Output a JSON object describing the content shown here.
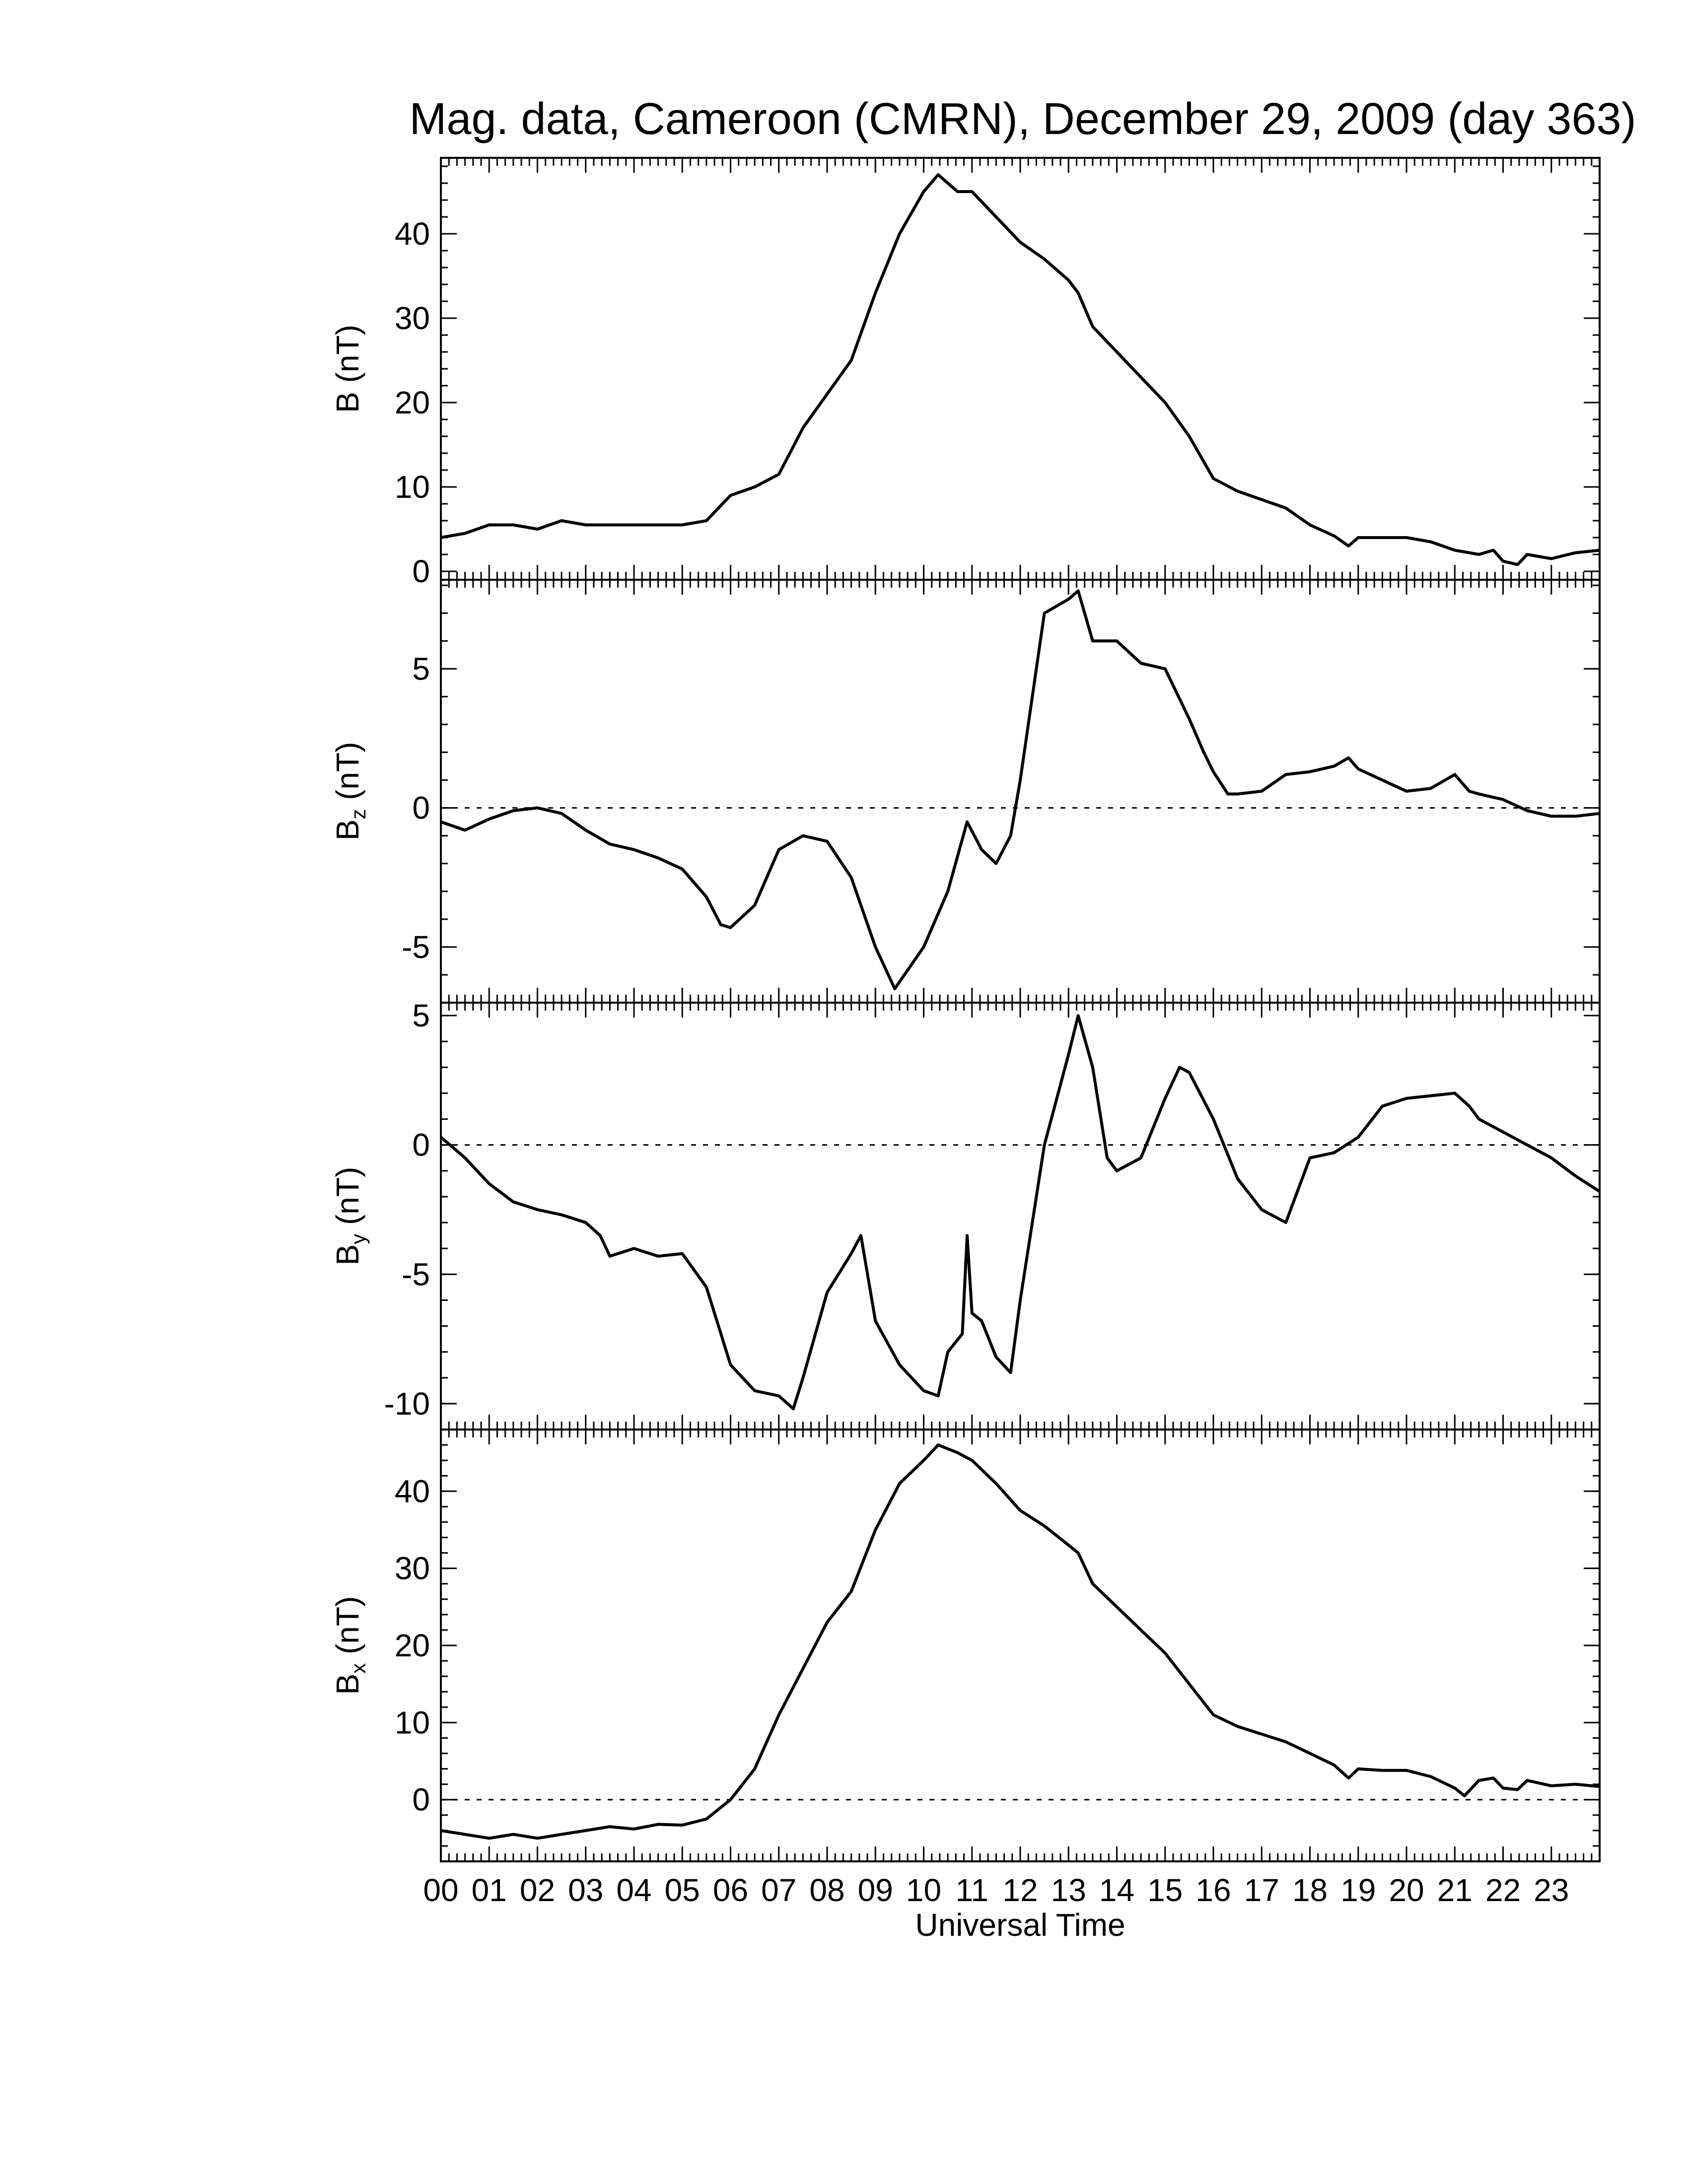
{
  "chart_data": {
    "type": "line",
    "title": "Mag. data, Cameroon (CMRN), December 29, 2009 (day 363)",
    "xlabel": "Universal Time",
    "x_tick_labels": [
      "00",
      "01",
      "02",
      "03",
      "04",
      "05",
      "06",
      "07",
      "08",
      "09",
      "10",
      "11",
      "12",
      "13",
      "14",
      "15",
      "16",
      "17",
      "18",
      "19",
      "20",
      "21",
      "22",
      "23"
    ],
    "xlim": [
      0,
      24
    ],
    "panels": [
      {
        "name": "B",
        "ylabel_main": "B",
        "ylabel_sub": "",
        "ylabel_unit": " (nT)",
        "ylim": [
          -1,
          49
        ],
        "yticks": [
          0,
          10,
          20,
          30,
          40
        ],
        "zero_line": false,
        "x": [
          0,
          0.5,
          1,
          1.5,
          2,
          2.5,
          3,
          3.5,
          4,
          4.5,
          5,
          5.5,
          6,
          6.5,
          7,
          7.5,
          8,
          8.5,
          9,
          9.5,
          10,
          10.3,
          10.7,
          11,
          11.5,
          12,
          12.5,
          13,
          13.2,
          13.5,
          14,
          14.5,
          15,
          15.5,
          16,
          16.5,
          17,
          17.5,
          18,
          18.5,
          18.8,
          19,
          19.5,
          20,
          20.5,
          21,
          21.5,
          21.8,
          22,
          22.3,
          22.5,
          23,
          23.5,
          24
        ],
        "y": [
          4,
          4.5,
          5.5,
          5.5,
          5,
          6,
          5.5,
          5.5,
          5.5,
          5.5,
          5.5,
          6,
          9,
          10,
          11.5,
          17,
          21,
          25,
          33,
          40,
          45,
          47,
          45,
          45,
          42,
          39,
          37,
          34.5,
          33,
          29,
          26,
          23,
          20,
          16,
          11,
          9.5,
          8.5,
          7.5,
          5.5,
          4.2,
          3,
          4,
          4,
          4,
          3.5,
          2.5,
          2,
          2.5,
          1.2,
          0.8,
          2,
          1.5,
          2.2,
          2.5
        ]
      },
      {
        "name": "Bz",
        "ylabel_main": "B",
        "ylabel_sub": "z",
        "ylabel_unit": " (nT)",
        "ylim": [
          -7,
          8.2
        ],
        "yticks": [
          -5,
          0,
          5
        ],
        "zero_line": true,
        "x": [
          0,
          0.5,
          1,
          1.5,
          2,
          2.5,
          3,
          3.5,
          4,
          4.5,
          5,
          5.5,
          5.8,
          6,
          6.5,
          7,
          7.5,
          8,
          8.5,
          9,
          9.4,
          10,
          10.5,
          10.9,
          11.2,
          11.5,
          11.8,
          12,
          12.5,
          13,
          13.2,
          13.5,
          14,
          14.5,
          15,
          15.5,
          15.8,
          16,
          16.3,
          16.5,
          17,
          17.5,
          18,
          18.5,
          18.8,
          19,
          19.5,
          20,
          20.5,
          21,
          21.3,
          21.5,
          22,
          22.5,
          23,
          23.5,
          24
        ],
        "y": [
          -0.5,
          -0.8,
          -0.4,
          -0.1,
          0,
          -0.2,
          -0.8,
          -1.3,
          -1.5,
          -1.8,
          -2.2,
          -3.2,
          -4.2,
          -4.3,
          -3.5,
          -1.5,
          -1,
          -1.2,
          -2.5,
          -5,
          -6.5,
          -5,
          -3,
          -0.5,
          -1.5,
          -2,
          -1,
          1,
          7,
          7.5,
          7.8,
          6,
          6,
          5.2,
          5,
          3.2,
          2,
          1.3,
          0.5,
          0.5,
          0.6,
          1.2,
          1.3,
          1.5,
          1.8,
          1.4,
          1,
          0.6,
          0.7,
          1.2,
          0.6,
          0.5,
          0.3,
          -0.1,
          -0.3,
          -0.3,
          -0.2
        ]
      },
      {
        "name": "By",
        "ylabel_main": "B",
        "ylabel_sub": "y",
        "ylabel_unit": " (nT)",
        "ylim": [
          -11,
          5.5
        ],
        "yticks": [
          -10,
          -5,
          0,
          5
        ],
        "zero_line": true,
        "x": [
          0,
          0.5,
          1,
          1.5,
          2,
          2.5,
          3,
          3.3,
          3.5,
          4,
          4.5,
          5,
          5.5,
          6,
          6.5,
          7,
          7.3,
          7.5,
          8,
          8.5,
          8.7,
          9,
          9.5,
          10,
          10.3,
          10.5,
          10.8,
          10.9,
          11,
          11.2,
          11.5,
          11.8,
          12,
          12.5,
          13,
          13.2,
          13.5,
          13.8,
          14,
          14.5,
          15,
          15.3,
          15.5,
          16,
          16.5,
          17,
          17.5,
          18,
          18.5,
          19,
          19.5,
          20,
          20.5,
          21,
          21.3,
          21.5,
          22,
          22.5,
          23,
          23.5,
          24
        ],
        "y": [
          0.3,
          -0.5,
          -1.5,
          -2.2,
          -2.5,
          -2.7,
          -3,
          -3.5,
          -4.3,
          -4,
          -4.3,
          -4.2,
          -5.5,
          -8.5,
          -9.5,
          -9.7,
          -10.2,
          -9,
          -5.7,
          -4.2,
          -3.5,
          -6.8,
          -8.5,
          -9.5,
          -9.7,
          -8,
          -7.3,
          -3.5,
          -6.5,
          -6.8,
          -8.2,
          -8.8,
          -6,
          0,
          3.5,
          5,
          3,
          -0.5,
          -1,
          -0.5,
          1.8,
          3,
          2.8,
          1,
          -1.3,
          -2.5,
          -3,
          -0.5,
          -0.3,
          0.3,
          1.5,
          1.8,
          1.9,
          2,
          1.5,
          1,
          0.5,
          0,
          -0.5,
          -1.2,
          -1.8
        ]
      },
      {
        "name": "Bx",
        "ylabel_main": "B",
        "ylabel_sub": "x",
        "ylabel_unit": " (nT)",
        "ylim": [
          -8,
          48
        ],
        "yticks": [
          0,
          10,
          20,
          30,
          40
        ],
        "zero_line": true,
        "x": [
          0,
          0.5,
          1,
          1.5,
          2,
          2.5,
          3,
          3.5,
          4,
          4.5,
          5,
          5.5,
          6,
          6.5,
          7,
          7.5,
          8,
          8.5,
          9,
          9.5,
          10,
          10.3,
          10.7,
          11,
          11.5,
          12,
          12.5,
          13,
          13.2,
          13.5,
          14,
          14.5,
          15,
          15.5,
          16,
          16.5,
          17,
          17.5,
          18,
          18.5,
          18.8,
          19,
          19.5,
          20,
          20.5,
          21,
          21.2,
          21.5,
          21.8,
          22,
          22.3,
          22.5,
          23,
          23.5,
          24
        ],
        "y": [
          -4,
          -4.5,
          -5,
          -4.5,
          -5,
          -4.5,
          -4,
          -3.5,
          -3.8,
          -3.2,
          -3.3,
          -2.5,
          0,
          4,
          11,
          17,
          23,
          27,
          35,
          41,
          44,
          46,
          45,
          44,
          41,
          37.5,
          35.5,
          33,
          32,
          28,
          25,
          22,
          19,
          15,
          11,
          9.5,
          8.5,
          7.5,
          6,
          4.5,
          2.8,
          4,
          3.8,
          3.8,
          3,
          1.5,
          0.5,
          2.5,
          2.8,
          1.5,
          1.3,
          2.5,
          1.8,
          2,
          1.7
        ]
      }
    ]
  }
}
